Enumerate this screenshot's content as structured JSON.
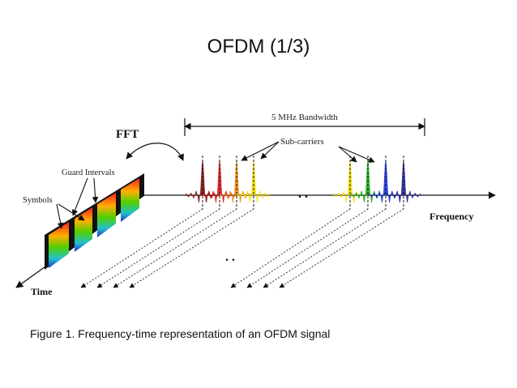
{
  "slide": {
    "title": "OFDM (1/3)",
    "caption": "Figure 1. Frequency-time representation of an OFDM signal"
  },
  "diagram": {
    "labels": {
      "fft": "FFT",
      "bandwidth": "5 MHz Bandwidth",
      "subcarriers": "Sub-carriers",
      "guard_intervals": "Guard Intervals",
      "symbols": "Symbols",
      "frequency": "Frequency",
      "time": "Time",
      "ellipsis": ". ."
    },
    "subcarrier_colors_left": [
      "#7a0a0a",
      "#e01010",
      "#f08a10",
      "#f5e000"
    ],
    "subcarrier_colors_right": [
      "#f5e000",
      "#10b010",
      "#1030e0",
      "#202090"
    ]
  }
}
